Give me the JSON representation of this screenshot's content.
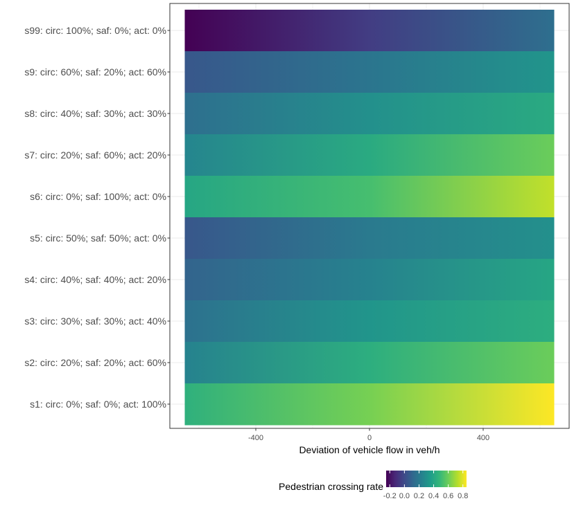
{
  "chart_data": {
    "type": "heatmap",
    "title": "",
    "xlabel": "Deviation of vehicle flow in veh/h",
    "ylabel": "",
    "xlim": [
      -650,
      650
    ],
    "x_ticks": [
      -400,
      0,
      400
    ],
    "x_tick_labels": [
      "-400",
      "0",
      "400"
    ],
    "grid": true,
    "legend_position": "bottom",
    "colorscale": "viridis",
    "categories": [
      "s99: circ: 100%; saf: 0%; act: 0%",
      "s9: circ: 60%; saf: 20%; act: 60%",
      "s8: circ: 40%; saf: 30%; act: 30%",
      "s7: circ: 20%; saf: 60%; act: 20%",
      "s6: circ: 0%; saf: 100%; act: 0%",
      "s5: circ: 50%; saf: 50%; act: 0%",
      "s4: circ: 40%; saf: 40%; act: 20%",
      "s3: circ: 30%; saf: 30%; act: 40%",
      "s2: circ: 20%; saf: 20%; act: 60%",
      "s1: circ: 0%; saf: 0%; act: 100%"
    ],
    "x_samples": [
      -650,
      0,
      650
    ],
    "values": [
      [
        -0.25,
        -0.05,
        0.15
      ],
      [
        0.05,
        0.18,
        0.32
      ],
      [
        0.15,
        0.3,
        0.42
      ],
      [
        0.25,
        0.42,
        0.6
      ],
      [
        0.4,
        0.52,
        0.75
      ],
      [
        0.05,
        0.2,
        0.3
      ],
      [
        0.1,
        0.24,
        0.4
      ],
      [
        0.16,
        0.32,
        0.44
      ],
      [
        0.24,
        0.44,
        0.6
      ],
      [
        0.45,
        0.62,
        0.85
      ]
    ],
    "legend": {
      "title": "Pedestrian crossing rate",
      "range": [
        -0.25,
        0.85
      ],
      "ticks": [
        -0.2,
        0.0,
        0.2,
        0.4,
        0.6,
        0.8
      ],
      "tick_labels": [
        "-0.2",
        "0.0",
        "0.2",
        "0.4",
        "0.6",
        "0.8"
      ]
    }
  }
}
